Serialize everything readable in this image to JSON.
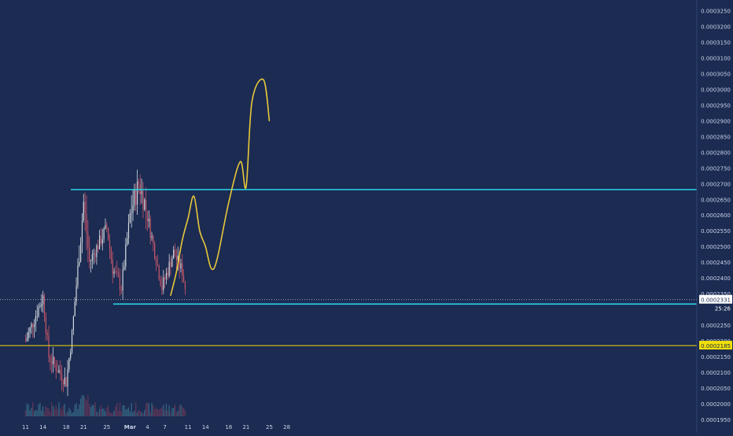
{
  "chart_data": {
    "type": "candlestick",
    "title": "",
    "xlabel": "",
    "ylabel": "",
    "x_tick_labels": [
      "11",
      "14",
      "18",
      "21",
      "25",
      "Mar",
      "4",
      "7",
      "11",
      "14",
      "18",
      "21",
      "25",
      "28"
    ],
    "y_range": [
      0.000195,
      0.0003275
    ],
    "y_tick_labels": [
      "0.0003250",
      "0.0003200",
      "0.0003150",
      "0.0003100",
      "0.0003050",
      "0.0003000",
      "0.0002950",
      "0.0002900",
      "0.0002850",
      "0.0002800",
      "0.0002750",
      "0.0002700",
      "0.0002650",
      "0.0002600",
      "0.0002550",
      "0.0002500",
      "0.0002450",
      "0.0002400",
      "0.0002350",
      "0.0002300",
      "0.0002250",
      "0.0002200",
      "0.0002150",
      "0.0002100",
      "0.0002050",
      "0.0002000",
      "0.0001950"
    ],
    "colors": {
      "background": "#1b2b52",
      "up": "#d3d8de",
      "down": "#c7566a",
      "support_resistance": "#29d3e6",
      "support_level": "#f2e00a",
      "projection": "#e8c83a"
    },
    "price_levels": [
      {
        "label": "resistance",
        "value": 0.0002681,
        "color": "#29d3e6"
      },
      {
        "label": "support",
        "value": 0.0002317,
        "color": "#29d3e6"
      },
      {
        "label": "support-2",
        "value": 0.0002185,
        "color": "#f2e00a",
        "tag": "0.0002185"
      }
    ],
    "current_price": {
      "value": 0.0002331,
      "tag": "0.0002331",
      "countdown": "25:26"
    },
    "projection_path": [
      [
        "Mar 8",
        0.0002345
      ],
      [
        "Mar 9",
        0.000242
      ],
      [
        "Mar 10",
        0.000252
      ],
      [
        "Mar 11",
        0.000259
      ],
      [
        "Mar 12",
        0.000266
      ],
      [
        "Mar 13",
        0.000255
      ],
      [
        "Mar 14",
        0.00025
      ],
      [
        "Mar 15",
        0.000243
      ],
      [
        "Mar 16",
        0.000246
      ],
      [
        "Mar 18",
        0.000264
      ],
      [
        "Mar 20",
        0.000277
      ],
      [
        "Mar 21",
        0.000269
      ],
      [
        "Mar 22",
        0.000296
      ],
      [
        "Mar 24",
        0.000303
      ],
      [
        "Mar 25",
        0.00029
      ]
    ]
  }
}
